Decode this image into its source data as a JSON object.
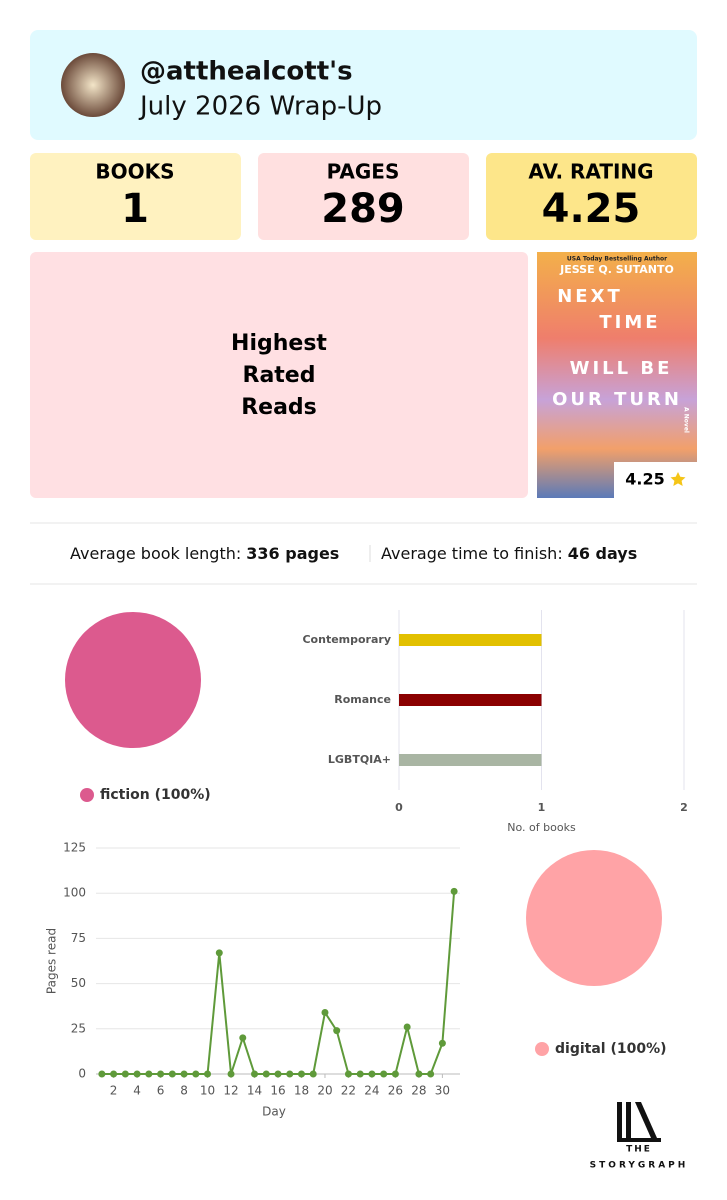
{
  "header": {
    "handle": "@atthealcott's",
    "title": "July 2026 Wrap-Up"
  },
  "stats": [
    {
      "label": "BOOKS",
      "value": 1
    },
    {
      "label": "PAGES",
      "value": 289
    },
    {
      "label": "AV. RATING",
      "value": 4.25
    }
  ],
  "highest_rated": {
    "heading": [
      "Highest",
      "Rated",
      "Reads"
    ],
    "book": {
      "tagline": "USA Today Bestselling Author",
      "author": "JESSE Q. SUTANTO",
      "title": [
        "NEXT",
        "TIME",
        "WILL BE",
        "OUR TURN"
      ],
      "subtitle": "A Novel",
      "rating": 4.25
    }
  },
  "summary": {
    "length_label": "Average book length:",
    "length_value": "336 pages",
    "time_label": "Average time to finish:",
    "time_value": "46 days"
  },
  "chart_data": [
    {
      "type": "pie",
      "categories": [
        "fiction"
      ],
      "values": [
        100
      ],
      "value_labels": [
        "fiction (100%)"
      ],
      "colors": [
        "#dc5a8e"
      ]
    },
    {
      "type": "hbar",
      "categories": [
        "Contemporary",
        "Romance",
        "LGBTQIA+"
      ],
      "values": [
        1,
        1,
        1
      ],
      "colors": [
        "#e2c000",
        "#8b0000",
        "#a9b5a3"
      ],
      "xlim": [
        0,
        2
      ],
      "xticks": [
        0,
        1,
        2
      ],
      "xlabel": "No. of books",
      "grid": true
    },
    {
      "type": "line",
      "xlabel": "Day",
      "ylabel": "Pages read",
      "x": [
        1,
        2,
        3,
        4,
        5,
        6,
        7,
        8,
        9,
        10,
        11,
        12,
        13,
        14,
        15,
        16,
        17,
        18,
        19,
        20,
        21,
        22,
        23,
        24,
        25,
        26,
        27,
        28,
        29,
        30,
        31
      ],
      "series": [
        {
          "name": "Pages read",
          "color": "#5f9a3a",
          "values": [
            0,
            0,
            0,
            0,
            0,
            0,
            0,
            0,
            0,
            0,
            67,
            0,
            20,
            0,
            0,
            0,
            0,
            0,
            0,
            34,
            24,
            0,
            0,
            0,
            0,
            0,
            26,
            0,
            0,
            17,
            101
          ]
        }
      ],
      "xlim": [
        0.5,
        31.5
      ],
      "xticks": [
        2,
        4,
        6,
        8,
        10,
        12,
        14,
        16,
        18,
        20,
        22,
        24,
        26,
        28,
        30
      ],
      "ylim": [
        0,
        125
      ],
      "yticks": [
        0,
        25,
        50,
        75,
        100,
        125
      ],
      "grid": true
    },
    {
      "type": "pie",
      "categories": [
        "digital"
      ],
      "values": [
        100
      ],
      "value_labels": [
        "digital (100%)"
      ],
      "colors": [
        "#ffa3a6"
      ]
    }
  ],
  "footer": {
    "logo_top": "THE",
    "logo_bottom": "STORYGRAPH"
  }
}
